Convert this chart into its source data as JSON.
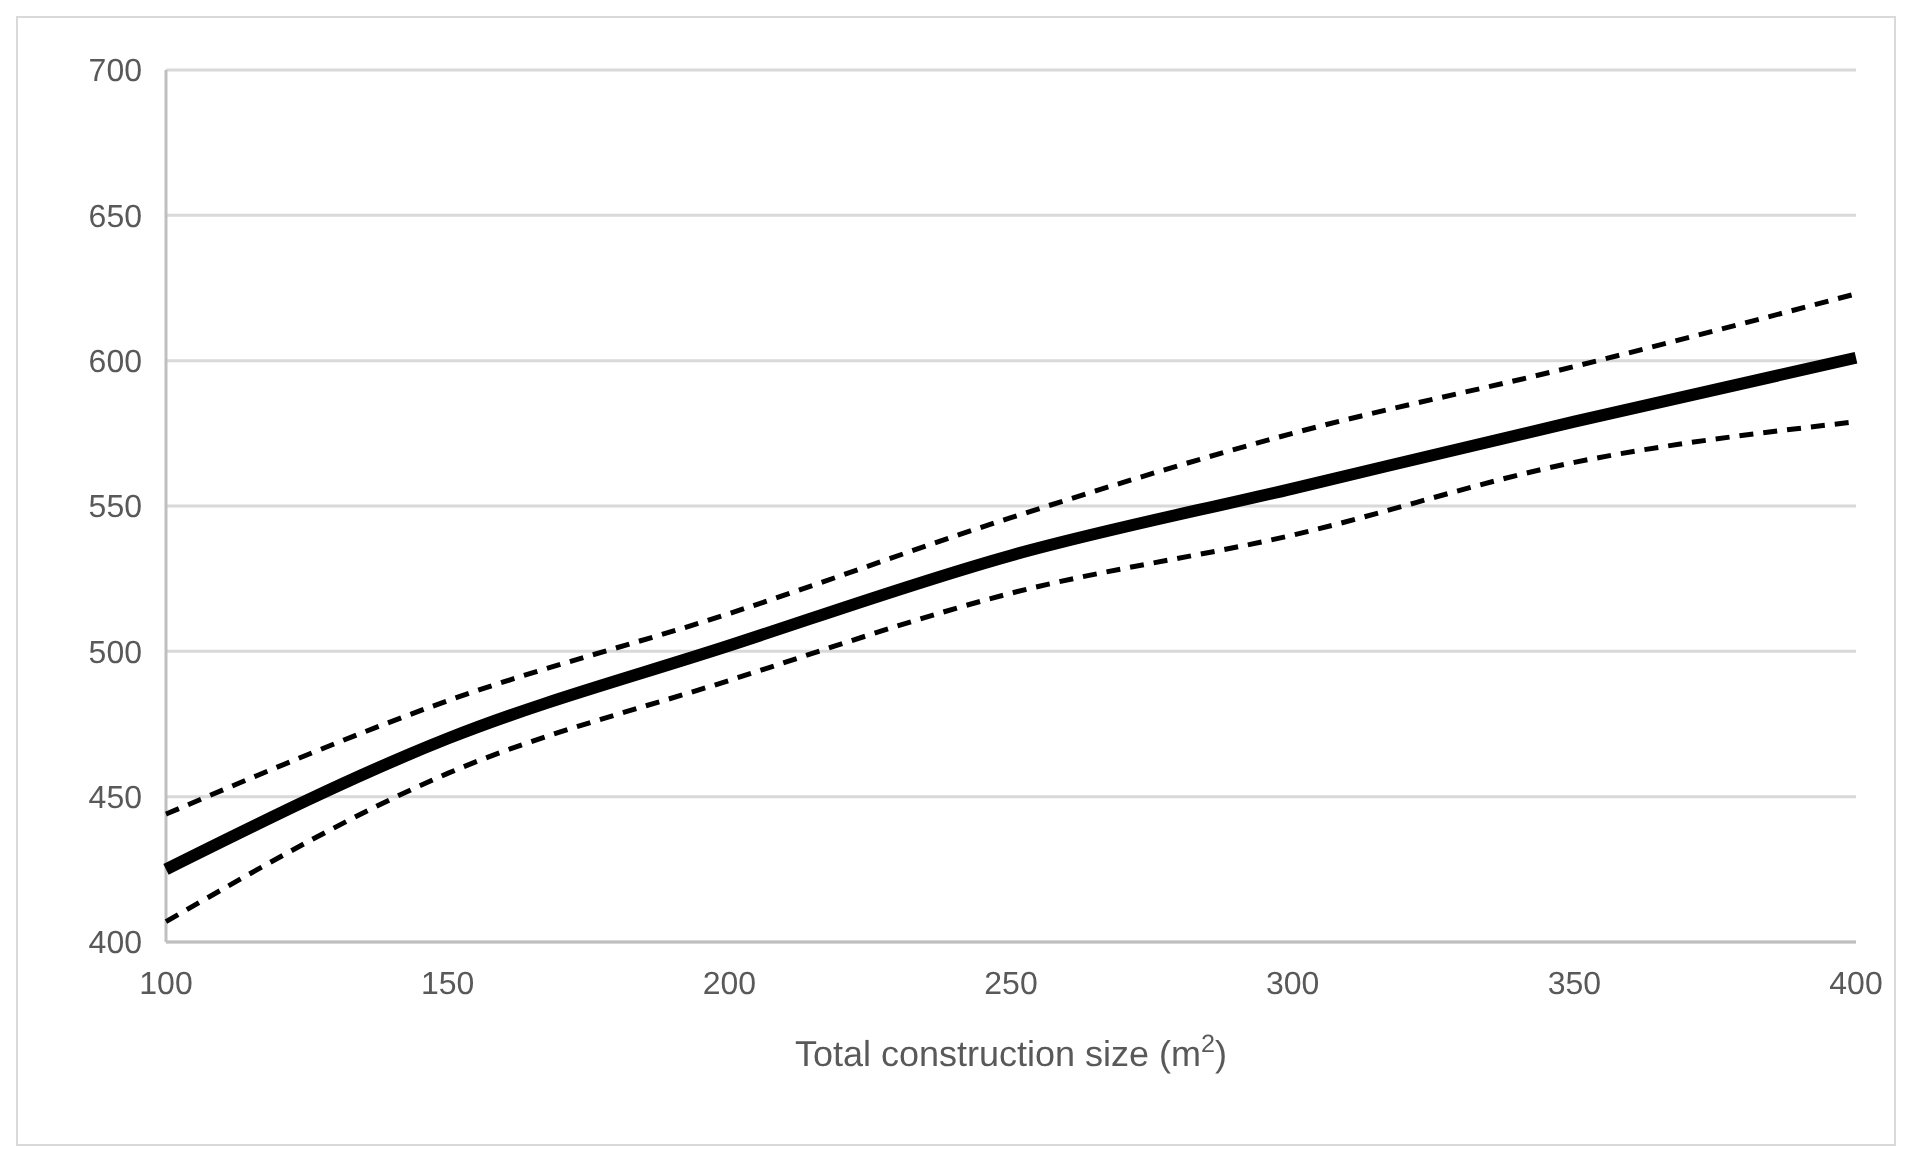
{
  "chart_data": {
    "type": "line",
    "xlabel": "Total construction size (m$^{2}$)",
    "x": [
      100,
      150,
      200,
      250,
      300,
      350,
      400
    ],
    "series": [
      {
        "color": "#000000",
        "line_style": "dashed",
        "values": [
          444,
          483,
          513,
          546,
          575,
          598,
          623
        ]
      },
      {
        "color": "#000000",
        "line_style": "solid",
        "values": [
          425,
          470,
          502,
          533,
          556,
          579,
          601
        ]
      },
      {
        "color": "#000000",
        "line_style": "dashed",
        "values": [
          407,
          458,
          490,
          520,
          540,
          565,
          579
        ]
      }
    ],
    "xlim": [
      100,
      400
    ],
    "xticks": [
      100,
      150,
      200,
      250,
      300,
      350,
      400
    ],
    "ylim": [
      400,
      700
    ],
    "yticks": [
      400,
      450,
      500,
      550,
      600,
      650,
      700
    ],
    "grid": "y",
    "marker": "none"
  }
}
